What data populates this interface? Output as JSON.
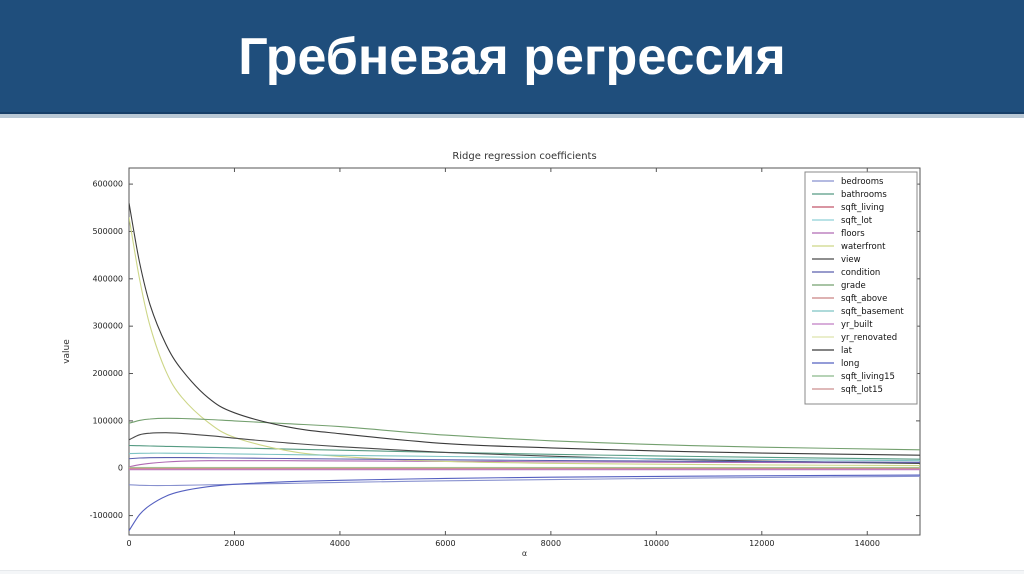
{
  "slide": {
    "title": "Гребневая регрессия",
    "header_background": "#1f4e7c",
    "title_color": "#ffffff"
  },
  "figure": {
    "background": "#ffffff",
    "axes_color": "#555555",
    "text_color": "#333333",
    "legend_border": "#888888"
  },
  "chart_data": {
    "type": "line",
    "title": "Ridge regression coefficients",
    "xlabel": "α",
    "ylabel": "value",
    "xlim": [
      0,
      15000
    ],
    "ylim": [
      -141000,
      634000
    ],
    "xticks": [
      0,
      2000,
      4000,
      6000,
      8000,
      10000,
      12000,
      14000
    ],
    "yticks": [
      -100000,
      0,
      100000,
      200000,
      300000,
      400000,
      500000,
      600000
    ],
    "grid": false,
    "legend_position": "upper right",
    "x": [
      0,
      200,
      400,
      700,
      1000,
      1500,
      2000,
      3000,
      4000,
      6000,
      8000,
      10000,
      12000,
      15000
    ],
    "series": [
      {
        "name": "bedrooms",
        "color": "#8891cf",
        "values": [
          -35000,
          -36000,
          -36500,
          -36500,
          -36000,
          -35000,
          -34000,
          -32000,
          -30000,
          -26500,
          -24000,
          -21500,
          -19500,
          -17000
        ]
      },
      {
        "name": "bathrooms",
        "color": "#569b83",
        "values": [
          48000,
          47500,
          47000,
          46200,
          45500,
          44200,
          43000,
          40500,
          38000,
          33500,
          29500,
          26000,
          23000,
          19000
        ]
      },
      {
        "name": "sqft_living",
        "color": "#c2566b",
        "values": [
          1500,
          1500,
          1500,
          1500,
          1500,
          1500,
          1500,
          1500,
          1500,
          1500,
          1500,
          1500,
          1500,
          1500
        ]
      },
      {
        "name": "sqft_lot",
        "color": "#8fd0d8",
        "values": [
          -700,
          -700,
          -700,
          -700,
          -700,
          -700,
          -700,
          -700,
          -700,
          -700,
          -700,
          -700,
          -700,
          -700
        ]
      },
      {
        "name": "floors",
        "color": "#b06ab3",
        "values": [
          3000,
          7500,
          10500,
          13200,
          14800,
          15800,
          16000,
          15800,
          15400,
          14500,
          13600,
          12800,
          12200,
          11400
        ]
      },
      {
        "name": "waterfront",
        "color": "#cdd687",
        "values": [
          530000,
          400000,
          300000,
          205000,
          150000,
          97000,
          65000,
          37000,
          25000,
          14500,
          10500,
          8500,
          7000,
          5500
        ]
      },
      {
        "name": "view",
        "color": "#4a4a4a",
        "values": [
          60000,
          70500,
          74000,
          75000,
          73500,
          69000,
          63500,
          53500,
          45500,
          33500,
          25500,
          19500,
          15000,
          10000
        ]
      },
      {
        "name": "condition",
        "color": "#5b5fae",
        "values": [
          20000,
          21500,
          22200,
          22500,
          22400,
          22000,
          21500,
          20500,
          19500,
          17800,
          16300,
          15000,
          13900,
          12500
        ]
      },
      {
        "name": "grade",
        "color": "#74a06f",
        "values": [
          95000,
          101000,
          104000,
          105500,
          105000,
          103000,
          100000,
          94000,
          88000,
          70000,
          58000,
          50000,
          44500,
          39000
        ]
      },
      {
        "name": "sqft_above",
        "color": "#c98585",
        "values": [
          -1500,
          -1500,
          -1500,
          -1500,
          -1500,
          -1500,
          -1500,
          -1500,
          -1500,
          -1500,
          -1500,
          -1500,
          -1500,
          -1500
        ]
      },
      {
        "name": "sqft_basement",
        "color": "#7ec4c4",
        "values": [
          31000,
          31500,
          31800,
          31800,
          31500,
          31000,
          30200,
          28800,
          27400,
          24800,
          22400,
          20300,
          18500,
          16000
        ]
      },
      {
        "name": "yr_built",
        "color": "#c07ec4",
        "values": [
          -3000,
          -3000,
          -3000,
          -3000,
          -3000,
          -3000,
          -3000,
          -3000,
          -3000,
          -3000,
          -3000,
          -3000,
          -3000,
          -3000
        ]
      },
      {
        "name": "yr_renovated",
        "color": "#dde3ac",
        "values": [
          1800,
          1800,
          1800,
          1800,
          1800,
          1800,
          1800,
          1800,
          1800,
          1800,
          1800,
          1800,
          1800,
          1800
        ]
      },
      {
        "name": "lat",
        "color": "#3b3b3b",
        "values": [
          560000,
          435000,
          345000,
          262000,
          208000,
          149000,
          117000,
          87500,
          73000,
          52000,
          43000,
          36500,
          32000,
          27500
        ]
      },
      {
        "name": "long",
        "color": "#5560c0",
        "values": [
          -132000,
          -98000,
          -78000,
          -59000,
          -48500,
          -39000,
          -34000,
          -28500,
          -25500,
          -21500,
          -19000,
          -17300,
          -16000,
          -14500
        ]
      },
      {
        "name": "sqft_living15",
        "color": "#8ab98a",
        "values": [
          900,
          900,
          900,
          900,
          900,
          900,
          900,
          900,
          900,
          900,
          900,
          900,
          900,
          900
        ]
      },
      {
        "name": "sqft_lot15",
        "color": "#cc8f8f",
        "values": [
          -400,
          -400,
          -400,
          -400,
          -400,
          -400,
          -400,
          -400,
          -400,
          -400,
          -400,
          -400,
          -400,
          -400
        ]
      }
    ]
  }
}
